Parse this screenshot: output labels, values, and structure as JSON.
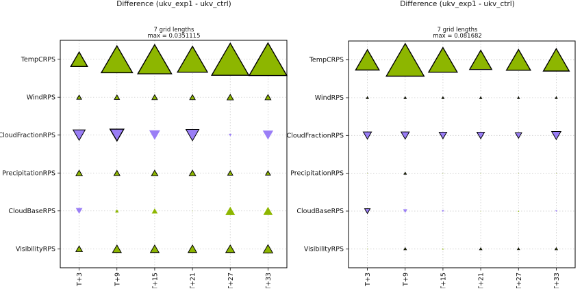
{
  "colors": {
    "positive": "#8db600",
    "negative": "#9a7ef6",
    "grid": "#c8c8c8",
    "frame": "#000000"
  },
  "chart_data": [
    {
      "type": "triangle-matrix",
      "title": "Difference (ukv_exp1 - ukv_ctrl)",
      "scale_note": "7 grid lengths",
      "max_note": "max = 0.0351115",
      "max": 0.0351115,
      "rows": [
        "TempCRPS",
        "WindRPS",
        "CloudFractionRPS",
        "PrecipitationRPS",
        "CloudBaseRPS",
        "VisibilityRPS"
      ],
      "columns": [
        "T+3",
        "T+9",
        "T+15",
        "T+21",
        "T+27",
        "T+33"
      ],
      "grid": "on (dotted)",
      "note": "upward green triangle = positive difference, downward purple = negative; outlined = significant",
      "values": [
        [
          0.0155,
          0.029,
          0.0315,
          0.028,
          0.0345,
          0.0351
        ],
        [
          0.0045,
          0.0048,
          0.0051,
          0.0051,
          0.006,
          0.0055
        ],
        [
          -0.0113,
          -0.0128,
          -0.0102,
          -0.0121,
          -0.0028,
          -0.0098
        ],
        [
          0.006,
          0.0055,
          0.006,
          0.006,
          0.0048,
          0.0046
        ],
        [
          -0.0063,
          0.0035,
          0.0055,
          0.0005,
          0.0091,
          0.0088
        ],
        [
          0.0061,
          0.0081,
          0.008,
          0.008,
          0.0082,
          0.0088
        ]
      ],
      "significant": [
        [
          true,
          true,
          true,
          true,
          true,
          true
        ],
        [
          true,
          true,
          true,
          true,
          true,
          true
        ],
        [
          true,
          true,
          false,
          true,
          false,
          false
        ],
        [
          true,
          true,
          true,
          true,
          true,
          true
        ],
        [
          false,
          false,
          false,
          false,
          false,
          false
        ],
        [
          true,
          true,
          true,
          true,
          true,
          true
        ]
      ]
    },
    {
      "type": "triangle-matrix",
      "title": "Difference (ukv_exp1 - ukv_ctrl)",
      "scale_note": "7 grid lengths",
      "max_note": "max = 0.081682",
      "max": 0.081682,
      "rows": [
        "TempCRPS",
        "WindRPS",
        "CloudFractionRPS",
        "PrecipitationRPS",
        "CloudBaseRPS",
        "VisibilityRPS"
      ],
      "columns": [
        "T+3",
        "T+9",
        "T+15",
        "T+21",
        "T+27",
        "T+33"
      ],
      "grid": "on (dotted)",
      "note": "upward green triangle = positive difference, downward purple = negative; outlined = significant",
      "values": [
        [
          0.051,
          0.0817,
          0.062,
          0.048,
          0.052,
          0.056
        ],
        [
          0.0045,
          0.0045,
          0.0045,
          0.0045,
          0.004,
          0.004
        ],
        [
          -0.018,
          -0.018,
          -0.0165,
          -0.0165,
          -0.014,
          -0.02
        ],
        [
          0.0004,
          0.005,
          0.0018,
          0.0012,
          0.002,
          0.0018
        ],
        [
          -0.012,
          -0.009,
          -0.005,
          0.0018,
          0.003,
          -0.0045
        ],
        [
          0.0022,
          0.0052,
          0.0035,
          0.005,
          0.0045,
          0.0052
        ]
      ],
      "significant": [
        [
          true,
          true,
          true,
          true,
          true,
          true
        ],
        [
          true,
          true,
          true,
          true,
          true,
          true
        ],
        [
          true,
          true,
          true,
          true,
          true,
          true
        ],
        [
          false,
          true,
          false,
          false,
          false,
          false
        ],
        [
          true,
          false,
          false,
          false,
          false,
          false
        ],
        [
          false,
          true,
          false,
          true,
          true,
          true
        ]
      ]
    }
  ]
}
